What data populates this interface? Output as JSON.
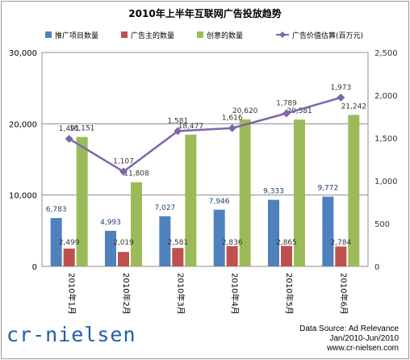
{
  "title": "2010年上半年互联网广告投放趋势",
  "footer": {
    "source": "Data Source: Ad Relevance",
    "period": "Jan/2010-Jun/2010",
    "site": "www.cr-nielsen.com"
  },
  "logo": {
    "text": "cr-nielsen"
  },
  "chart_data": {
    "type": "bar",
    "categories": [
      "2010年1月",
      "2010年2月",
      "2010年3月",
      "2010年4月",
      "2010年5月",
      "2010年6月"
    ],
    "series": [
      {
        "name": "推广项目数量",
        "values": [
          6783,
          4993,
          7027,
          7946,
          9333,
          9772
        ],
        "color": "#4f81bd",
        "axis": "left"
      },
      {
        "name": "广告主的数量",
        "values": [
          2499,
          2019,
          2581,
          2836,
          2865,
          2784
        ],
        "color": "#c0504d",
        "axis": "left"
      },
      {
        "name": "创意的数量",
        "values": [
          18151,
          11808,
          18477,
          20620,
          20581,
          21242
        ],
        "color": "#9bbb59",
        "axis": "left"
      }
    ],
    "line_series": {
      "name": "广告价值估算(百万元)",
      "values": [
        1491,
        1107,
        1581,
        1616,
        1789,
        1973
      ],
      "color": "#7f65a9",
      "axis": "right"
    },
    "left_axis": {
      "ylim": [
        0,
        30000
      ],
      "ticks": [
        "0",
        "10,000",
        "20,000",
        "30,000"
      ]
    },
    "right_axis": {
      "ylim": [
        0,
        2500
      ],
      "ticks": [
        "0",
        "500",
        "1,000",
        "1,500",
        "2,000",
        "2,500"
      ]
    },
    "legend_position": "top",
    "grid": true
  }
}
